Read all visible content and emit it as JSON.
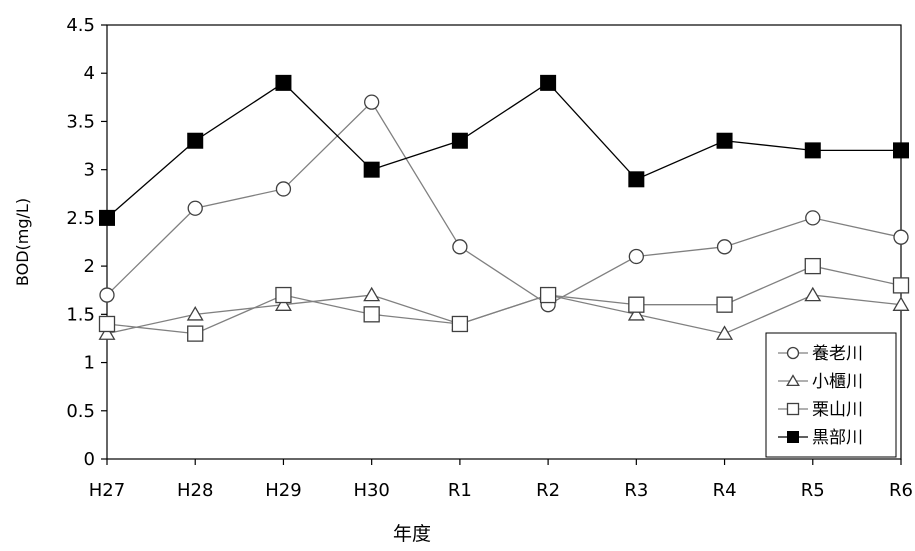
{
  "chart_data": {
    "type": "line",
    "title": "",
    "xlabel": "年度",
    "ylabel": "BOD(mg/L)",
    "categories": [
      "H27",
      "H28",
      "H29",
      "H30",
      "R1",
      "R2",
      "R3",
      "R4",
      "R5",
      "R6"
    ],
    "ylim": [
      0,
      4.5
    ],
    "yticks": [
      "0",
      "0.5",
      "1",
      "1.5",
      "2",
      "2.5",
      "3",
      "3.5",
      "4",
      "4.5"
    ],
    "grid": false,
    "legend_position": "bottom-right",
    "series": [
      {
        "name": "養老川",
        "marker": "circle-open",
        "values": [
          1.7,
          2.6,
          2.8,
          3.7,
          2.2,
          1.6,
          2.1,
          2.2,
          2.5,
          2.3
        ]
      },
      {
        "name": "小櫃川",
        "marker": "triangle-open",
        "values": [
          1.3,
          1.5,
          1.6,
          1.7,
          1.4,
          1.7,
          1.5,
          1.3,
          1.7,
          1.6
        ]
      },
      {
        "name": "栗山川",
        "marker": "square-open",
        "values": [
          1.4,
          1.3,
          1.7,
          1.5,
          1.4,
          1.7,
          1.6,
          1.6,
          2.0,
          1.8
        ]
      },
      {
        "name": "黒部川",
        "marker": "square-filled",
        "values": [
          2.5,
          3.3,
          3.9,
          3.0,
          3.3,
          3.9,
          2.9,
          3.3,
          3.2,
          3.2
        ]
      }
    ],
    "colors": {
      "line": "#808080",
      "marker": "#404040",
      "filled": "#000000",
      "axis": "#000000"
    }
  }
}
